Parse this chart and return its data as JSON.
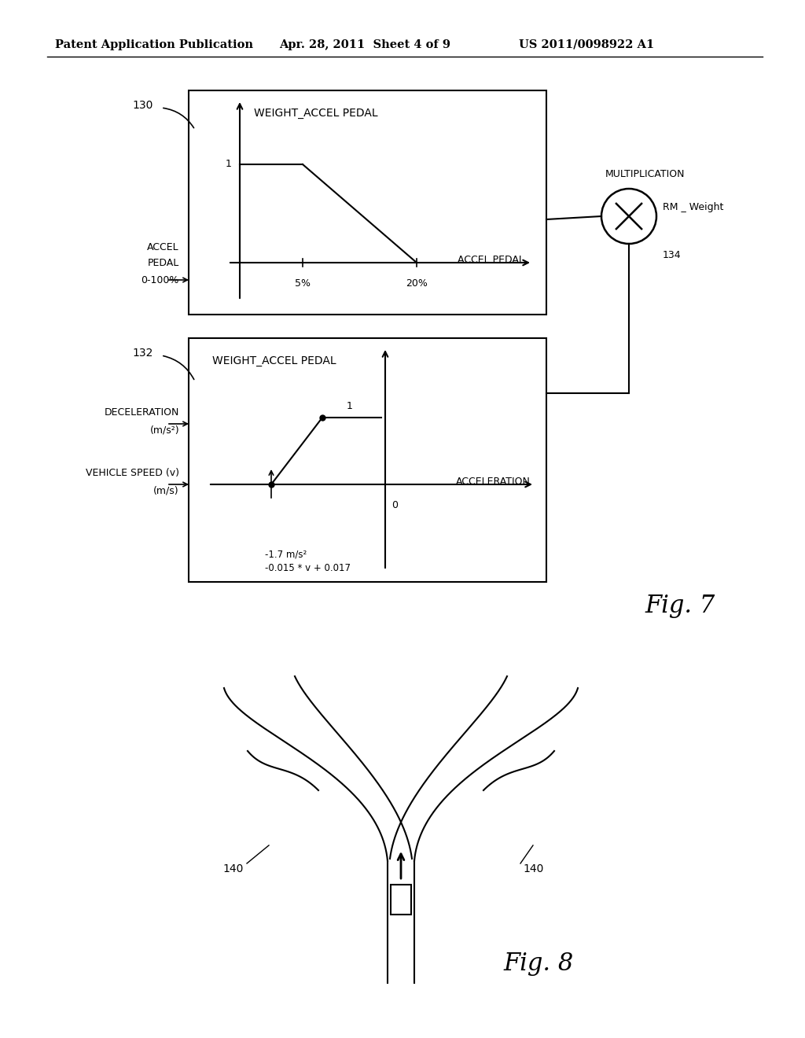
{
  "bg_color": "#ffffff",
  "header_left": "Patent Application Publication",
  "header_mid": "Apr. 28, 2011  Sheet 4 of 9",
  "header_right": "US 2011/0098922 A1",
  "fig7_label": "Fig. 7",
  "fig8_label": "Fig. 8",
  "graph1_title": "WEIGHT_ACCEL PEDAL",
  "graph1_xlabel": "ACCEL PEDAL",
  "graph1_y1_label": "1",
  "graph1_x1_label": "5%",
  "graph1_x2_label": "20%",
  "graph1_ref": "130",
  "graph1_left_label1": "ACCEL",
  "graph1_left_label2": "PEDAL",
  "graph1_left_label3": "0-100%",
  "graph2_title": "WEIGHT_ACCEL PEDAL",
  "graph2_xlabel": "ACCELERATION",
  "graph2_y1_label": "1",
  "graph2_x0_label": "0",
  "graph2_ref": "132",
  "graph2_left_label1": "DECELERATION",
  "graph2_left_label2": "(m/s²)",
  "graph2_left_label3": "VEHICLE SPEED (v)",
  "graph2_left_label4": "(m/s)",
  "graph2_bot_label1": "-1.7 m/s²",
  "graph2_bot_label2": "-0.015 * v + 0.017",
  "mult_label": "MULTIPLICATION",
  "mult_ref": "134",
  "mult_rm": "RM _ Weight",
  "fig8_road_140_left": "140",
  "fig8_road_140_right": "140"
}
